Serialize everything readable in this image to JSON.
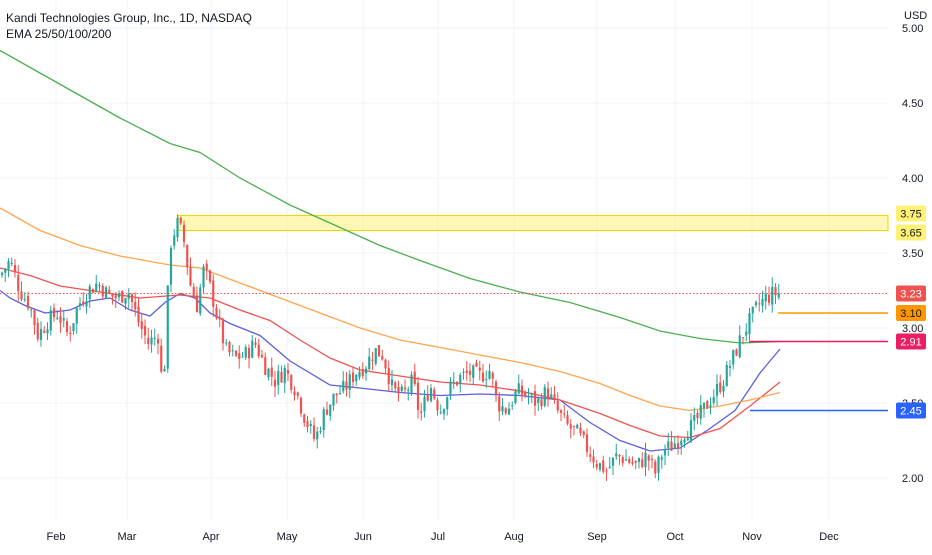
{
  "header": {
    "title": "Kandi Technologies Group, Inc., 1D, NASDAQ",
    "indicator": "EMA 25/50/100/200"
  },
  "currency": "USD",
  "colors": {
    "up": "#26a69a",
    "down": "#ef5350",
    "ema25": "#5b5fe0",
    "ema50": "#ef5350",
    "ema100": "#ffa54f",
    "ema200": "#4caf50",
    "zone": "#fff176",
    "grid": "#f0f3fa",
    "axis_text": "#131722"
  },
  "chart_data": {
    "type": "candlestick",
    "title": "Kandi Technologies Group, Inc., 1D, NASDAQ",
    "y_axis": {
      "unit": "USD",
      "ticks": [
        "2.00",
        "2.50",
        "3.00",
        "3.50",
        "4.00",
        "4.50",
        "5.00"
      ],
      "range": [
        1.9,
        5.0
      ]
    },
    "x_axis": {
      "ticks": [
        "Feb",
        "Mar",
        "Apr",
        "May",
        "Jun",
        "Jul",
        "Aug",
        "Sep",
        "Oct",
        "Nov",
        "Dec"
      ]
    },
    "resistance_zone": {
      "from": 3.65,
      "to": 3.75
    },
    "price_labels": [
      {
        "value": "3.75",
        "price": 3.75,
        "bg": "#fff176",
        "fg": "#131722"
      },
      {
        "value": "3.65",
        "price": 3.65,
        "bg": "#fff176",
        "fg": "#131722"
      },
      {
        "value": "3.23",
        "price": 3.23,
        "bg": "#ef5350",
        "fg": "#ffffff"
      },
      {
        "value": "3.10",
        "price": 3.1,
        "bg": "#ff9800",
        "fg": "#131722"
      },
      {
        "value": "2.91",
        "price": 2.91,
        "bg": "#e91e63",
        "fg": "#ffffff"
      },
      {
        "value": "2.45",
        "price": 2.45,
        "bg": "#2962ff",
        "fg": "#ffffff"
      }
    ],
    "horizontal_lines": [
      {
        "price": 3.23,
        "color": "#ef5350",
        "style": "dotted",
        "from_month": "Jan"
      },
      {
        "price": 3.1,
        "color": "#ff9800",
        "style": "solid",
        "from_month": "Nov"
      },
      {
        "price": 2.91,
        "color": "#e91e63",
        "style": "solid",
        "from_month": "Oct"
      },
      {
        "price": 2.45,
        "color": "#2962ff",
        "style": "solid",
        "from_month": "Oct"
      }
    ],
    "ema_series": [
      {
        "name": "EMA 25",
        "color": "#5b5fe0",
        "points": [
          [
            0,
            3.25
          ],
          [
            10,
            3.2
          ],
          [
            25,
            3.15
          ],
          [
            45,
            3.1
          ],
          [
            70,
            3.12
          ],
          [
            90,
            3.18
          ],
          [
            110,
            3.2
          ],
          [
            130,
            3.12
          ],
          [
            150,
            3.08
          ],
          [
            165,
            3.17
          ],
          [
            180,
            3.23
          ],
          [
            195,
            3.2
          ],
          [
            210,
            3.1
          ],
          [
            230,
            3.03
          ],
          [
            260,
            2.95
          ],
          [
            290,
            2.78
          ],
          [
            330,
            2.62
          ],
          [
            360,
            2.6
          ],
          [
            400,
            2.57
          ],
          [
            440,
            2.55
          ],
          [
            480,
            2.56
          ],
          [
            520,
            2.55
          ],
          [
            560,
            2.52
          ],
          [
            590,
            2.37
          ],
          [
            620,
            2.25
          ],
          [
            650,
            2.18
          ],
          [
            680,
            2.2
          ],
          [
            710,
            2.33
          ],
          [
            735,
            2.45
          ],
          [
            760,
            2.7
          ],
          [
            780,
            2.86
          ]
        ]
      },
      {
        "name": "EMA 50",
        "color": "#ef5350",
        "points": [
          [
            0,
            3.4
          ],
          [
            30,
            3.35
          ],
          [
            60,
            3.28
          ],
          [
            100,
            3.24
          ],
          [
            140,
            3.2
          ],
          [
            180,
            3.22
          ],
          [
            210,
            3.2
          ],
          [
            240,
            3.12
          ],
          [
            270,
            3.05
          ],
          [
            300,
            2.92
          ],
          [
            330,
            2.8
          ],
          [
            360,
            2.72
          ],
          [
            400,
            2.68
          ],
          [
            440,
            2.64
          ],
          [
            480,
            2.62
          ],
          [
            520,
            2.58
          ],
          [
            560,
            2.52
          ],
          [
            600,
            2.43
          ],
          [
            630,
            2.35
          ],
          [
            660,
            2.28
          ],
          [
            690,
            2.27
          ],
          [
            720,
            2.33
          ],
          [
            750,
            2.48
          ],
          [
            780,
            2.64
          ]
        ]
      },
      {
        "name": "EMA 100",
        "color": "#ffa54f",
        "points": [
          [
            0,
            3.8
          ],
          [
            40,
            3.65
          ],
          [
            80,
            3.55
          ],
          [
            120,
            3.48
          ],
          [
            170,
            3.42
          ],
          [
            200,
            3.4
          ],
          [
            240,
            3.3
          ],
          [
            280,
            3.2
          ],
          [
            320,
            3.1
          ],
          [
            360,
            3.0
          ],
          [
            400,
            2.92
          ],
          [
            440,
            2.87
          ],
          [
            480,
            2.82
          ],
          [
            520,
            2.77
          ],
          [
            560,
            2.71
          ],
          [
            600,
            2.63
          ],
          [
            630,
            2.55
          ],
          [
            660,
            2.48
          ],
          [
            690,
            2.45
          ],
          [
            720,
            2.48
          ],
          [
            750,
            2.52
          ],
          [
            780,
            2.57
          ]
        ]
      },
      {
        "name": "EMA 200",
        "color": "#4caf50",
        "points": [
          [
            0,
            4.85
          ],
          [
            40,
            4.7
          ],
          [
            80,
            4.55
          ],
          [
            120,
            4.4
          ],
          [
            170,
            4.23
          ],
          [
            200,
            4.17
          ],
          [
            240,
            4.0
          ],
          [
            290,
            3.82
          ],
          [
            340,
            3.67
          ],
          [
            380,
            3.55
          ],
          [
            420,
            3.45
          ],
          [
            470,
            3.33
          ],
          [
            520,
            3.24
          ],
          [
            570,
            3.17
          ],
          [
            620,
            3.07
          ],
          [
            660,
            2.98
          ],
          [
            700,
            2.93
          ],
          [
            740,
            2.9
          ],
          [
            780,
            2.91
          ]
        ]
      }
    ],
    "price_path": [
      [
        0,
        3.35
      ],
      [
        10,
        3.45
      ],
      [
        20,
        3.25
      ],
      [
        30,
        3.15
      ],
      [
        38,
        2.95
      ],
      [
        48,
        3.05
      ],
      [
        58,
        3.1
      ],
      [
        68,
        2.95
      ],
      [
        78,
        3.15
      ],
      [
        88,
        3.25
      ],
      [
        98,
        3.3
      ],
      [
        108,
        3.22
      ],
      [
        118,
        3.2
      ],
      [
        128,
        3.25
      ],
      [
        138,
        3.05
      ],
      [
        148,
        2.9
      ],
      [
        158,
        2.95
      ],
      [
        163,
        2.55
      ],
      [
        170,
        3.55
      ],
      [
        177,
        3.7
      ],
      [
        183,
        3.62
      ],
      [
        190,
        3.3
      ],
      [
        197,
        3.15
      ],
      [
        204,
        3.4
      ],
      [
        211,
        3.25
      ],
      [
        218,
        3.05
      ],
      [
        226,
        2.85
      ],
      [
        235,
        2.8
      ],
      [
        245,
        2.82
      ],
      [
        255,
        2.9
      ],
      [
        265,
        2.75
      ],
      [
        275,
        2.65
      ],
      [
        285,
        2.72
      ],
      [
        295,
        2.6
      ],
      [
        305,
        2.4
      ],
      [
        315,
        2.25
      ],
      [
        325,
        2.45
      ],
      [
        335,
        2.55
      ],
      [
        345,
        2.6
      ],
      [
        355,
        2.7
      ],
      [
        365,
        2.75
      ],
      [
        375,
        2.85
      ],
      [
        383,
        2.82
      ],
      [
        393,
        2.58
      ],
      [
        403,
        2.55
      ],
      [
        413,
        2.65
      ],
      [
        420,
        2.4
      ],
      [
        430,
        2.62
      ],
      [
        440,
        2.45
      ],
      [
        450,
        2.6
      ],
      [
        460,
        2.67
      ],
      [
        470,
        2.7
      ],
      [
        480,
        2.68
      ],
      [
        490,
        2.72
      ],
      [
        497,
        2.5
      ],
      [
        507,
        2.45
      ],
      [
        517,
        2.58
      ],
      [
        527,
        2.55
      ],
      [
        537,
        2.5
      ],
      [
        547,
        2.58
      ],
      [
        557,
        2.45
      ],
      [
        567,
        2.35
      ],
      [
        577,
        2.3
      ],
      [
        587,
        2.2
      ],
      [
        597,
        2.1
      ],
      [
        607,
        2.05
      ],
      [
        617,
        2.15
      ],
      [
        627,
        2.12
      ],
      [
        637,
        2.08
      ],
      [
        647,
        2.15
      ],
      [
        655,
        2.03
      ],
      [
        663,
        2.18
      ],
      [
        673,
        2.22
      ],
      [
        683,
        2.3
      ],
      [
        693,
        2.35
      ],
      [
        703,
        2.45
      ],
      [
        713,
        2.55
      ],
      [
        723,
        2.65
      ],
      [
        733,
        2.8
      ],
      [
        742,
        2.95
      ],
      [
        750,
        3.05
      ],
      [
        758,
        3.15
      ],
      [
        766,
        3.2
      ],
      [
        774,
        3.23
      ],
      [
        780,
        3.23
      ]
    ],
    "ma_note": ""
  }
}
